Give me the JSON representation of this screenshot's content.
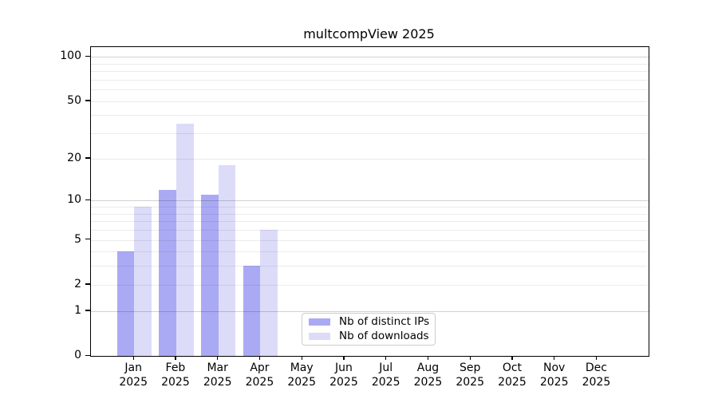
{
  "chart_data": {
    "type": "bar",
    "title": "multcompView 2025",
    "year_label": "2025",
    "categories": [
      "Jan",
      "Feb",
      "Mar",
      "Apr",
      "May",
      "Jun",
      "Jul",
      "Aug",
      "Sep",
      "Oct",
      "Nov",
      "Dec"
    ],
    "series": [
      {
        "name": "Nb of distinct IPs",
        "color": "#aaaaf4",
        "values": [
          4,
          12,
          11,
          3,
          null,
          null,
          null,
          null,
          null,
          null,
          null,
          null
        ]
      },
      {
        "name": "Nb of downloads",
        "color": "#dcdcf9",
        "values": [
          9,
          35,
          18,
          6,
          null,
          null,
          null,
          null,
          null,
          null,
          null,
          null
        ]
      }
    ],
    "yscale": "log1p",
    "ylim": [
      0,
      100
    ],
    "yticks": [
      0,
      1,
      2,
      5,
      10,
      20,
      50,
      100
    ],
    "major_gridlines": [
      1,
      10,
      100
    ],
    "minor_gridlines": [
      2,
      3,
      4,
      5,
      6,
      7,
      8,
      9,
      20,
      30,
      40,
      50,
      60,
      70,
      80,
      90
    ],
    "grid": "horizontal",
    "legend_position": "bottom-center",
    "text_color": "#000000",
    "gridline_major_color": "#d1d1d1",
    "gridline_minor_color": "#ebebeb"
  }
}
